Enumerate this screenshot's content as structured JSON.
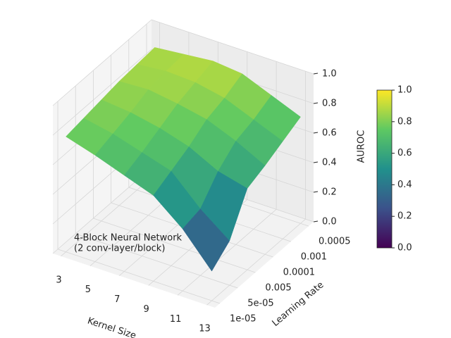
{
  "chart_data": {
    "type": "surface",
    "annotation": [
      "4-Block Neural Network",
      "(2 conv-layer/block)"
    ],
    "x_label": "Kernel Size",
    "y_label": "Learning Rate",
    "z_label": "AUROC",
    "x": [
      3,
      5,
      7,
      9,
      11,
      13
    ],
    "y": [
      "0.0005",
      "0.001",
      "0.0001",
      "0.005",
      "5e-05",
      "1e-05"
    ],
    "z": [
      [
        0.86,
        0.88,
        0.9,
        0.88,
        0.8,
        0.72
      ],
      [
        0.85,
        0.87,
        0.86,
        0.82,
        0.74,
        0.66
      ],
      [
        0.84,
        0.85,
        0.82,
        0.78,
        0.7,
        0.6
      ],
      [
        0.82,
        0.8,
        0.76,
        0.7,
        0.6,
        0.55
      ],
      [
        0.8,
        0.76,
        0.7,
        0.64,
        0.45,
        0.3
      ],
      [
        0.78,
        0.72,
        0.65,
        0.58,
        0.42,
        0.2
      ]
    ],
    "zlim": [
      0,
      1
    ],
    "zticks": [
      {
        "value": 0,
        "label": "0.0"
      },
      {
        "value": 0.2,
        "label": "0.2"
      },
      {
        "value": 0.4,
        "label": "0.4"
      },
      {
        "value": 0.6,
        "label": "0.6"
      },
      {
        "value": 0.8,
        "label": "0.8"
      },
      {
        "value": 1,
        "label": "1.0"
      }
    ],
    "colormap": [
      "#440154",
      "#3b528b",
      "#21918c",
      "#5ec962",
      "#fde725"
    ],
    "clim": [
      0,
      1
    ],
    "cticks": [
      {
        "value": 0,
        "label": "0.0"
      },
      {
        "value": 0.2,
        "label": "0.2"
      },
      {
        "value": 0.4,
        "label": "0.4"
      },
      {
        "value": 0.6,
        "label": "0.6"
      },
      {
        "value": 0.8,
        "label": "0.8"
      },
      {
        "value": 1,
        "label": "1.0"
      }
    ]
  }
}
